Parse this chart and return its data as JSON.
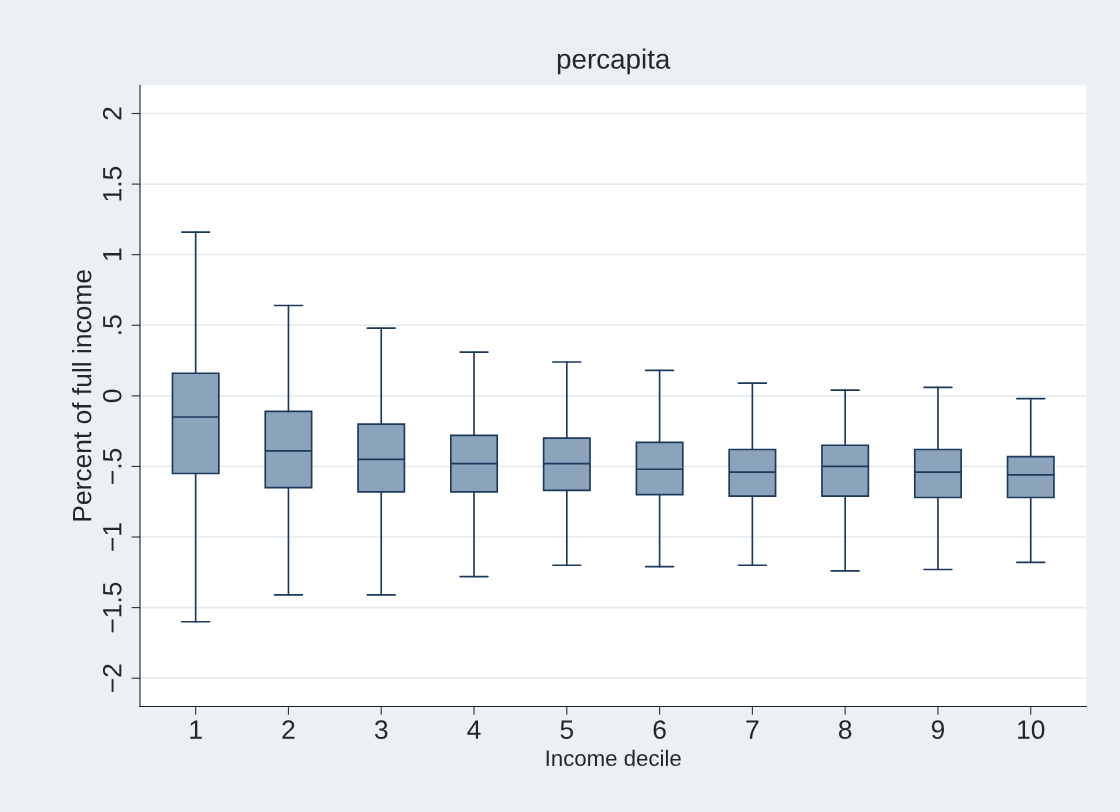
{
  "chart_data": {
    "type": "box",
    "title": "percapita",
    "xlabel": "Income decile",
    "ylabel": "Percent of full income",
    "categories": [
      "1",
      "2",
      "3",
      "4",
      "5",
      "6",
      "7",
      "8",
      "9",
      "10"
    ],
    "color": "#8ba3bb",
    "boxes": [
      {
        "low": -1.6,
        "q1": -0.55,
        "median": -0.15,
        "q3": 0.16,
        "high": 1.16
      },
      {
        "low": -1.41,
        "q1": -0.65,
        "median": -0.39,
        "q3": -0.11,
        "high": 0.64
      },
      {
        "low": -1.41,
        "q1": -0.68,
        "median": -0.45,
        "q3": -0.2,
        "high": 0.48
      },
      {
        "low": -1.28,
        "q1": -0.68,
        "median": -0.48,
        "q3": -0.28,
        "high": 0.31
      },
      {
        "low": -1.2,
        "q1": -0.67,
        "median": -0.48,
        "q3": -0.3,
        "high": 0.24
      },
      {
        "low": -1.21,
        "q1": -0.7,
        "median": -0.52,
        "q3": -0.33,
        "high": 0.18
      },
      {
        "low": -1.2,
        "q1": -0.71,
        "median": -0.54,
        "q3": -0.38,
        "high": 0.09
      },
      {
        "low": -1.24,
        "q1": -0.71,
        "median": -0.5,
        "q3": -0.35,
        "high": 0.04
      },
      {
        "low": -1.23,
        "q1": -0.72,
        "median": -0.54,
        "q3": -0.38,
        "high": 0.06
      },
      {
        "low": -1.18,
        "q1": -0.72,
        "median": -0.56,
        "q3": -0.43,
        "high": -0.02
      }
    ],
    "ylim": [
      -2.2,
      2.2
    ],
    "yticks": [
      {
        "value": -2,
        "label": "−2"
      },
      {
        "value": -1.5,
        "label": "−1.5"
      },
      {
        "value": -1,
        "label": "−1"
      },
      {
        "value": -0.5,
        "label": "−.5"
      },
      0,
      {
        "value": 0.5,
        "label": ".5"
      },
      1,
      {
        "value": 1.5,
        "label": "1.5"
      },
      2
    ],
    "grid": "y"
  }
}
